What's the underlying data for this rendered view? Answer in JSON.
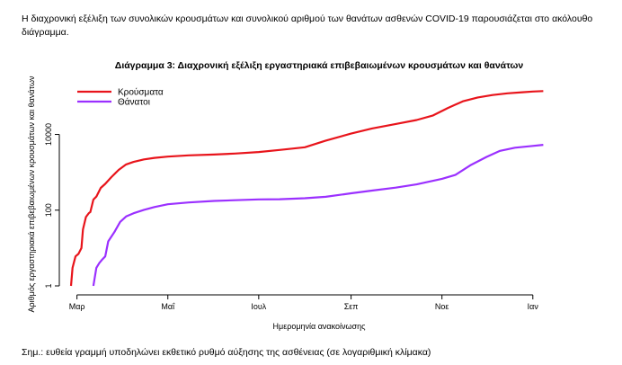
{
  "intro_text": "Η διαχρονική εξέλιξη των συνολικών κρουσμάτων και συνολικού αριθμού των θανάτων ασθενών COVID-19 παρουσιάζεται στο ακόλουθο διάγραμμα.",
  "footnote": "Σημ.: ευθεία γραμμή υποδηλώνει εκθετικό ρυθμό αύξησης της ασθένειας (σε λογαριθμική κλίμακα)",
  "chart_data": {
    "type": "line",
    "title": "Διάγραμμα 3: Διαχρονική εξέλιξη εργαστηριακά επιβεβαιωμένων κρουσμάτων και θανάτων",
    "xlabel": "Ημερομηνία ανακοίνωσης",
    "ylabel": "Αριθμός εργαστηριακά επιβεβαιωμένων κρουσμάτων και θανάτων",
    "y_scale": "log",
    "ylim": [
      1,
      150000
    ],
    "y_ticks": [
      {
        "value": 1,
        "label": "1"
      },
      {
        "value": 100,
        "label": "100"
      },
      {
        "value": 10000,
        "label": "10000"
      }
    ],
    "xlim": [
      "2020-02-26",
      "2021-01-15"
    ],
    "x_ticks": [
      {
        "date": "2020-03-01",
        "label": "Μαρ"
      },
      {
        "date": "2020-05-01",
        "label": "Μαΐ"
      },
      {
        "date": "2020-07-01",
        "label": "Ιουλ"
      },
      {
        "date": "2020-09-01",
        "label": "Σεπ"
      },
      {
        "date": "2020-11-01",
        "label": "Νοε"
      },
      {
        "date": "2021-01-01",
        "label": "Ιαν"
      }
    ],
    "grid": false,
    "legend_position": "top-left",
    "series": [
      {
        "name": "Κρούσματα",
        "color": "#e8141b",
        "points": [
          [
            "2020-02-26",
            1
          ],
          [
            "2020-02-27",
            3
          ],
          [
            "2020-02-29",
            6
          ],
          [
            "2020-03-02",
            7
          ],
          [
            "2020-03-04",
            10
          ],
          [
            "2020-03-05",
            31
          ],
          [
            "2020-03-07",
            66
          ],
          [
            "2020-03-09",
            84
          ],
          [
            "2020-03-10",
            89
          ],
          [
            "2020-03-12",
            190
          ],
          [
            "2020-03-14",
            228
          ],
          [
            "2020-03-17",
            387
          ],
          [
            "2020-03-20",
            495
          ],
          [
            "2020-03-24",
            743
          ],
          [
            "2020-03-29",
            1156
          ],
          [
            "2020-04-03",
            1613
          ],
          [
            "2020-04-08",
            1884
          ],
          [
            "2020-04-15",
            2192
          ],
          [
            "2020-04-22",
            2401
          ],
          [
            "2020-05-01",
            2591
          ],
          [
            "2020-05-15",
            2810
          ],
          [
            "2020-06-01",
            2952
          ],
          [
            "2020-06-15",
            3121
          ],
          [
            "2020-07-01",
            3432
          ],
          [
            "2020-07-15",
            3883
          ],
          [
            "2020-08-01",
            4587
          ],
          [
            "2020-08-15",
            6858
          ],
          [
            "2020-09-01",
            10524
          ],
          [
            "2020-09-15",
            14400
          ],
          [
            "2020-10-01",
            18886
          ],
          [
            "2020-10-15",
            24050
          ],
          [
            "2020-10-26",
            31800
          ],
          [
            "2020-11-05",
            50000
          ],
          [
            "2020-11-15",
            75000
          ],
          [
            "2020-11-25",
            95000
          ],
          [
            "2020-12-05",
            110000
          ],
          [
            "2020-12-15",
            122000
          ],
          [
            "2020-12-25",
            130000
          ],
          [
            "2021-01-01",
            136000
          ],
          [
            "2021-01-08",
            140000
          ]
        ]
      },
      {
        "name": "Θάνατοι",
        "color": "#9b30ff",
        "points": [
          [
            "2020-03-12",
            1
          ],
          [
            "2020-03-14",
            3
          ],
          [
            "2020-03-16",
            4
          ],
          [
            "2020-03-18",
            5
          ],
          [
            "2020-03-20",
            6
          ],
          [
            "2020-03-22",
            15
          ],
          [
            "2020-03-26",
            26
          ],
          [
            "2020-03-30",
            49
          ],
          [
            "2020-04-03",
            68
          ],
          [
            "2020-04-08",
            83
          ],
          [
            "2020-04-15",
            102
          ],
          [
            "2020-04-22",
            121
          ],
          [
            "2020-05-01",
            143
          ],
          [
            "2020-05-15",
            160
          ],
          [
            "2020-06-01",
            175
          ],
          [
            "2020-06-15",
            183
          ],
          [
            "2020-07-01",
            192
          ],
          [
            "2020-07-15",
            194
          ],
          [
            "2020-08-01",
            206
          ],
          [
            "2020-08-15",
            226
          ],
          [
            "2020-09-01",
            279
          ],
          [
            "2020-09-15",
            329
          ],
          [
            "2020-10-01",
            393
          ],
          [
            "2020-10-15",
            479
          ],
          [
            "2020-11-01",
            673
          ],
          [
            "2020-11-10",
            850
          ],
          [
            "2020-11-20",
            1527
          ],
          [
            "2020-12-01",
            2559
          ],
          [
            "2020-12-10",
            3689
          ],
          [
            "2020-12-20",
            4464
          ],
          [
            "2021-01-01",
            4977
          ],
          [
            "2021-01-08",
            5300
          ]
        ]
      }
    ]
  }
}
